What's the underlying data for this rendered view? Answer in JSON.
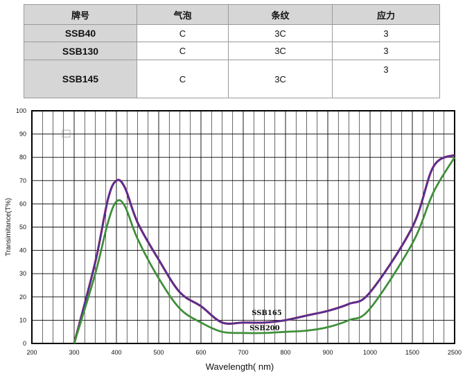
{
  "table": {
    "headers": [
      "牌号",
      "气泡",
      "条纹",
      "应力"
    ],
    "rows": [
      [
        "SSB40",
        "C",
        "3C",
        "3"
      ],
      [
        "SSB130",
        "C",
        "3C",
        "3"
      ],
      [
        "SSB145",
        "C",
        "3C",
        "3"
      ]
    ]
  },
  "chart_data": {
    "type": "line",
    "xlabel": "Wavelength( nm)",
    "ylabel": "Transimitance(T%)",
    "x_ticks": [
      "200",
      "300",
      "400",
      "500",
      "600",
      "700",
      "800",
      "900",
      "1000",
      "1500",
      "2500"
    ],
    "y_ticks": [
      0,
      10,
      20,
      30,
      40,
      50,
      60,
      70,
      80,
      90,
      100
    ],
    "ylim": [
      0,
      100
    ],
    "grid": true,
    "series": [
      {
        "name": "SSB165",
        "color": "#3a3a9a",
        "points": [
          [
            "300",
            0
          ],
          [
            "350",
            35
          ],
          [
            "380",
            62
          ],
          [
            "400",
            70
          ],
          [
            "420",
            67
          ],
          [
            "450",
            52
          ],
          [
            "500",
            36
          ],
          [
            "550",
            22
          ],
          [
            "600",
            16
          ],
          [
            "650",
            9
          ],
          [
            "700",
            9
          ],
          [
            "750",
            9
          ],
          [
            "800",
            10
          ],
          [
            "850",
            12
          ],
          [
            "900",
            14
          ],
          [
            "950",
            17
          ],
          [
            "1000",
            22
          ],
          [
            "1500",
            50
          ],
          [
            "2000",
            76
          ],
          [
            "2500",
            81
          ]
        ]
      },
      {
        "name": "SSB200",
        "color": "#3f8f3a",
        "points": [
          [
            "300",
            0
          ],
          [
            "350",
            30
          ],
          [
            "380",
            52
          ],
          [
            "400",
            61
          ],
          [
            "420",
            59
          ],
          [
            "450",
            45
          ],
          [
            "500",
            28
          ],
          [
            "550",
            15
          ],
          [
            "600",
            9
          ],
          [
            "650",
            5
          ],
          [
            "700",
            4.5
          ],
          [
            "750",
            4.5
          ],
          [
            "800",
            5
          ],
          [
            "850",
            5.5
          ],
          [
            "900",
            7
          ],
          [
            "950",
            10
          ],
          [
            "1000",
            15
          ],
          [
            "1500",
            43
          ],
          [
            "2000",
            65
          ],
          [
            "2500",
            80
          ]
        ]
      }
    ]
  }
}
